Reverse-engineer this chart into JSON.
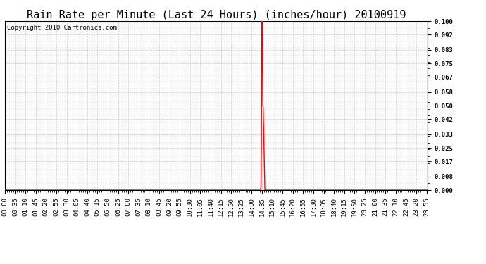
{
  "title": "Rain Rate per Minute (Last 24 Hours) (inches/hour) 20100919",
  "copyright_text": "Copyright 2010 Cartronics.com",
  "background_color": "#ffffff",
  "plot_bg_color": "#ffffff",
  "grid_color": "#c8c8c8",
  "line_color": "#ff0000",
  "spine_color": "#000000",
  "ylim": [
    0.0,
    0.1
  ],
  "yticks": [
    0.0,
    0.008,
    0.017,
    0.025,
    0.033,
    0.042,
    0.05,
    0.058,
    0.067,
    0.075,
    0.083,
    0.092,
    0.1
  ],
  "ytick_labels": [
    "0.000",
    "0.008",
    "0.017",
    "0.025",
    "0.033",
    "0.042",
    "0.050",
    "0.058",
    "0.067",
    "0.075",
    "0.083",
    "0.092",
    "0.100"
  ],
  "total_minutes": 1440,
  "xtick_step": 35,
  "spike_minutes": [
    871,
    872,
    873,
    874,
    875,
    876,
    877,
    878,
    879,
    880,
    881,
    882,
    883,
    884,
    885
  ],
  "spike_values": [
    0.0,
    0.008,
    0.025,
    0.083,
    0.1,
    0.1,
    0.075,
    0.05,
    0.05,
    0.042,
    0.033,
    0.025,
    0.017,
    0.008,
    0.0
  ],
  "title_fontsize": 11,
  "tick_fontsize": 6.5,
  "copyright_fontsize": 6.5
}
